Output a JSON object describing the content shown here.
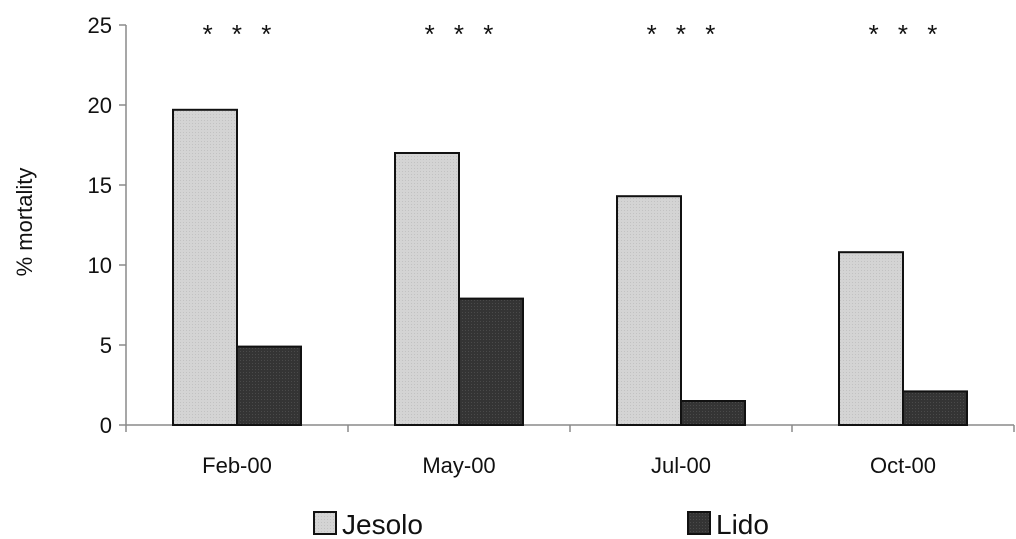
{
  "chart_data": {
    "type": "bar",
    "ylabel": "% mortality",
    "xlabel": "",
    "ylim": [
      0,
      25
    ],
    "yticks": [
      "0",
      "5",
      "10",
      "15",
      "20",
      "25"
    ],
    "categories": [
      "Feb-00",
      "May-00",
      "Jul-00",
      "Oct-00"
    ],
    "series": [
      {
        "name": "Jesolo",
        "values": [
          19.7,
          17.0,
          14.3,
          10.8
        ]
      },
      {
        "name": "Lido",
        "values": [
          4.9,
          7.9,
          1.5,
          2.1
        ]
      }
    ],
    "significance": [
      "* * *",
      "* * *",
      "* * *",
      "* * *"
    ],
    "legend_position": "bottom",
    "grid": false,
    "colors": {
      "Jesolo": "#d2d2d2",
      "Lido": "#333333"
    }
  }
}
